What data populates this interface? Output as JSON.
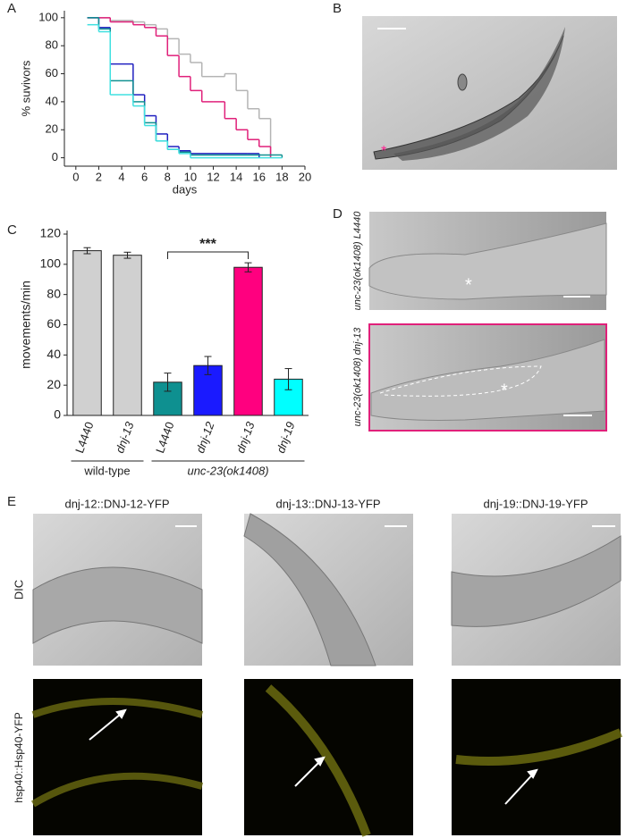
{
  "panel_labels": [
    "A",
    "B",
    "C",
    "D",
    "E"
  ],
  "chart_data": [
    {
      "type": "line",
      "step": true,
      "xlabel": "days",
      "ylabel": "% suvivors",
      "xlim": [
        -1,
        20
      ],
      "ylim": [
        -6,
        105
      ],
      "xticks": [
        0,
        2,
        4,
        6,
        8,
        10,
        12,
        14,
        16,
        18,
        20
      ],
      "yticks": [
        0,
        20,
        40,
        60,
        80,
        100
      ],
      "series": [
        {
          "color": "#b4b4b4",
          "x": [
            1,
            3,
            5,
            6,
            7,
            8,
            9,
            10,
            11,
            12,
            13,
            14,
            15,
            16,
            17
          ],
          "values": [
            100,
            98,
            97,
            95,
            92,
            85,
            74,
            68,
            58,
            58,
            60,
            48,
            35,
            28,
            0
          ]
        },
        {
          "color": "#e0207a",
          "x": [
            1,
            3,
            5,
            6,
            7,
            8,
            9,
            10,
            11,
            12,
            13,
            14,
            15,
            16,
            17
          ],
          "values": [
            100,
            97,
            95,
            93,
            87,
            73,
            58,
            48,
            40,
            40,
            28,
            20,
            13,
            8,
            0
          ]
        },
        {
          "color": "#2020c0",
          "x": [
            1,
            2,
            3,
            5,
            6,
            7,
            8,
            9,
            10,
            15,
            16
          ],
          "values": [
            100,
            93,
            67,
            45,
            30,
            17,
            8,
            5,
            3,
            3,
            0
          ]
        },
        {
          "color": "#109090",
          "x": [
            1,
            2,
            3,
            5,
            6,
            7,
            8,
            9,
            10,
            17,
            18
          ],
          "values": [
            100,
            92,
            55,
            40,
            25,
            12,
            6,
            4,
            2,
            2,
            0
          ]
        },
        {
          "color": "#40e0e0",
          "x": [
            1,
            2,
            3,
            5,
            6,
            7,
            8,
            9,
            10,
            18
          ],
          "values": [
            95,
            90,
            45,
            37,
            23,
            12,
            6,
            3,
            0,
            0
          ]
        }
      ]
    },
    {
      "type": "bar",
      "ylabel": "movements/min",
      "categories": [
        "L4440",
        "dnj-13",
        "L4440",
        "dnj-12",
        "dnj-13",
        "dnj-19"
      ],
      "values": [
        109,
        106,
        22,
        33,
        98,
        24
      ],
      "errors": [
        2,
        2,
        6,
        6,
        3,
        7
      ],
      "colors": [
        "#d0d0d0",
        "#d0d0d0",
        "#0e9090",
        "#1a1aff",
        "#ff007f",
        "#00ffff"
      ],
      "ylim": [
        0,
        120
      ],
      "yticks": [
        0,
        20,
        40,
        60,
        80,
        100,
        120
      ],
      "groups": [
        "wild-type",
        "unc-23(ok1408)"
      ],
      "significance": "***"
    }
  ],
  "panel_d": {
    "labels": [
      "unc-23(ok1408) L4440",
      "unc-23(ok1408) dnj-13"
    ]
  },
  "panel_e": {
    "columns": [
      "dnj-12::DNJ-12-YFP",
      "dnj-13::DNJ-13-YFP",
      "dnj-19::DNJ-19-YFP"
    ],
    "rows": [
      "DIC",
      "hsp40::Hsp40-YFP"
    ]
  }
}
